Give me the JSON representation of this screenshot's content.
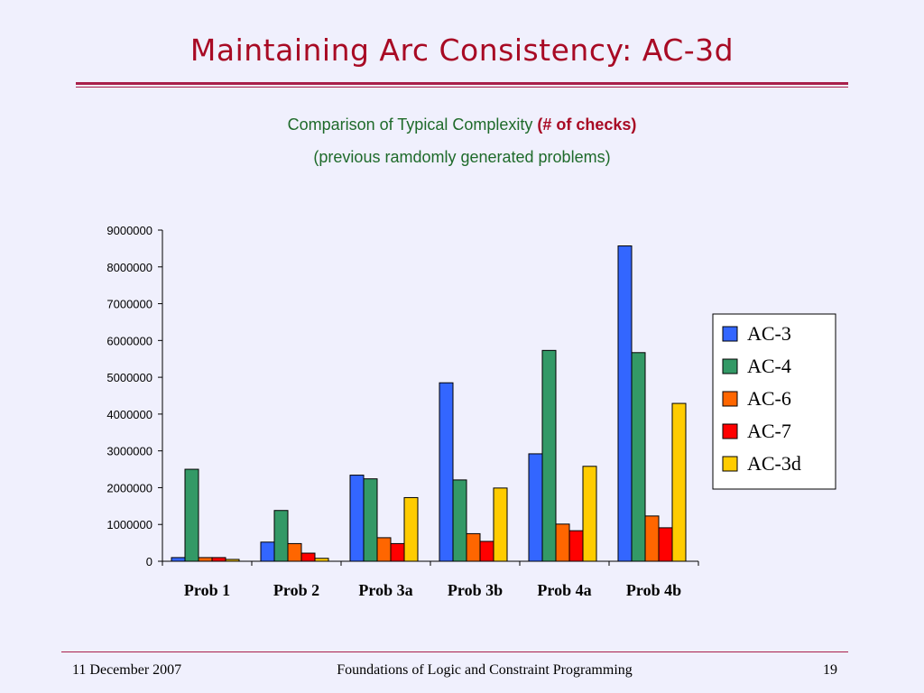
{
  "slide": {
    "title": "Maintaining Arc Consistency: AC-3d",
    "subtitle_line1_prefix": "Comparison of Typical Complexity ",
    "subtitle_line1_emphasis": "(# of checks)",
    "subtitle_line2": "(previous ramdomly generated problems)"
  },
  "footer": {
    "date": "11 December 2007",
    "course": "Foundations of Logic and Constraint Programming",
    "page_number": "19"
  },
  "chart_data": {
    "type": "bar",
    "categories": [
      "Prob 1",
      "Prob 2",
      "Prob 3a",
      "Prob 3b",
      "Prob 4a",
      "Prob 4b"
    ],
    "series": [
      {
        "name": "AC-3",
        "color": "#3366ff",
        "values": [
          100000,
          520000,
          2340000,
          4850000,
          2920000,
          8570000
        ]
      },
      {
        "name": "AC-4",
        "color": "#339966",
        "values": [
          2500000,
          1380000,
          2240000,
          2210000,
          5730000,
          5670000
        ]
      },
      {
        "name": "AC-6",
        "color": "#ff6600",
        "values": [
          100000,
          480000,
          640000,
          750000,
          1010000,
          1230000
        ]
      },
      {
        "name": "AC-7",
        "color": "#ff0000",
        "values": [
          100000,
          220000,
          480000,
          540000,
          830000,
          910000
        ]
      },
      {
        "name": "AC-3d",
        "color": "#ffcc00",
        "values": [
          50000,
          80000,
          1730000,
          1990000,
          2580000,
          4290000
        ]
      }
    ],
    "yticks": [
      "0",
      "1000000",
      "2000000",
      "3000000",
      "4000000",
      "5000000",
      "6000000",
      "7000000",
      "8000000",
      "9000000"
    ],
    "ylim": [
      0,
      9000000
    ],
    "grid": false,
    "legend_position": "right"
  }
}
